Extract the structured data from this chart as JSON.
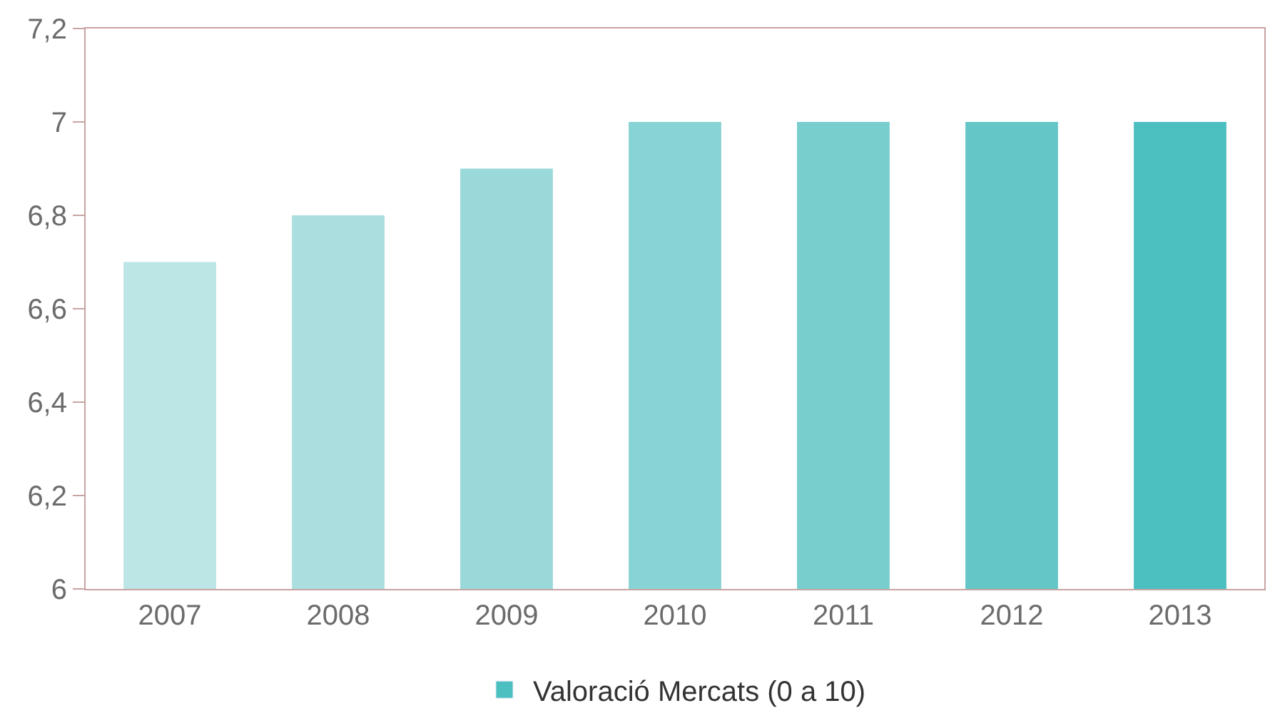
{
  "chart_data": {
    "type": "bar",
    "categories": [
      "2007",
      "2008",
      "2009",
      "2010",
      "2011",
      "2012",
      "2013"
    ],
    "series": [
      {
        "name": "Valoració Mercats (0 a 10)",
        "color": "#4cbfc0",
        "colors": [
          "#bce5e5",
          "#abdfdf",
          "#9ad9da",
          "#88d3d3",
          "#78cdcd",
          "#65c6c7",
          "#4cbfc0"
        ],
        "values": [
          6.7,
          6.8,
          6.9,
          7.0,
          7.0,
          7.0,
          7.0
        ]
      }
    ],
    "ylim": [
      6,
      7.2
    ],
    "yticks": [
      6,
      {
        "value": 6.2,
        "label": "6,2"
      },
      {
        "value": 6.4,
        "label": "6,4"
      },
      {
        "value": 6.6,
        "label": "6,6"
      },
      {
        "value": 6.8,
        "label": "6,8"
      },
      7,
      {
        "value": 7.2,
        "label": "7,2"
      }
    ],
    "legend": "bottom"
  }
}
